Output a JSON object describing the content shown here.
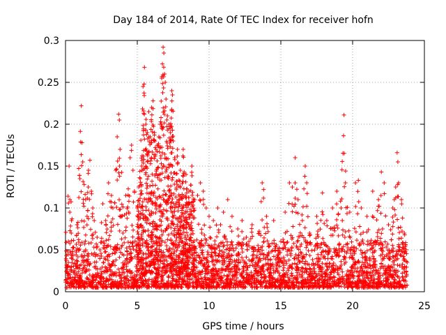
{
  "chart_data": {
    "type": "scatter",
    "title": "Day 184 of 2014, Rate Of TEC Index for receiver hofn",
    "xlabel": "GPS time / hours",
    "ylabel": "ROTI / TECUs",
    "xlim": [
      0,
      25
    ],
    "ylim": [
      0,
      0.3
    ],
    "xticks": [
      0,
      5,
      10,
      15,
      20,
      25
    ],
    "yticks": [
      0,
      0.05,
      0.1,
      0.15,
      0.2,
      0.25,
      0.3
    ],
    "xtick_labels": [
      "0",
      "5",
      "10",
      "15",
      "20",
      "25"
    ],
    "ytick_labels": [
      "0",
      "0.05",
      "0.1",
      "0.15",
      "0.2",
      "0.25",
      "0.3"
    ],
    "grid": true,
    "marker": "+",
    "marker_color": "#ff0000",
    "series": [
      {
        "name": "ROTI",
        "points": [
          [
            0.1,
            0.012
          ],
          [
            0.2,
            0.035
          ],
          [
            0.2,
            0.06
          ],
          [
            0.25,
            0.15
          ],
          [
            0.3,
            0.11
          ],
          [
            0.3,
            0.095
          ],
          [
            0.4,
            0.07
          ],
          [
            0.5,
            0.045
          ],
          [
            0.6,
            0.025
          ],
          [
            0.8,
            0.08
          ],
          [
            1.0,
            0.135
          ],
          [
            1.1,
            0.222
          ],
          [
            1.15,
            0.178
          ],
          [
            1.2,
            0.155
          ],
          [
            1.3,
            0.128
          ],
          [
            1.4,
            0.11
          ],
          [
            1.5,
            0.09
          ],
          [
            1.6,
            0.145
          ],
          [
            1.7,
            0.157
          ],
          [
            1.8,
            0.12
          ],
          [
            1.9,
            0.1
          ],
          [
            2.0,
            0.085
          ],
          [
            2.2,
            0.065
          ],
          [
            2.4,
            0.05
          ],
          [
            2.6,
            0.105
          ],
          [
            2.8,
            0.085
          ],
          [
            3.0,
            0.13
          ],
          [
            3.2,
            0.115
          ],
          [
            3.3,
            0.1
          ],
          [
            3.5,
            0.145
          ],
          [
            3.6,
            0.185
          ],
          [
            3.7,
            0.212
          ],
          [
            3.75,
            0.205
          ],
          [
            3.8,
            0.17
          ],
          [
            3.9,
            0.09
          ],
          [
            4.0,
            0.07
          ],
          [
            4.2,
            0.115
          ],
          [
            4.4,
            0.095
          ],
          [
            4.5,
            0.16
          ],
          [
            4.6,
            0.175
          ],
          [
            4.7,
            0.145
          ],
          [
            4.8,
            0.12
          ],
          [
            5.0,
            0.1
          ],
          [
            5.1,
            0.125
          ],
          [
            5.2,
            0.135
          ],
          [
            5.3,
            0.15
          ],
          [
            5.4,
            0.245
          ],
          [
            5.5,
            0.268
          ],
          [
            5.6,
            0.2
          ],
          [
            5.7,
            0.19
          ],
          [
            5.8,
            0.215
          ],
          [
            5.9,
            0.185
          ],
          [
            6.0,
            0.22
          ],
          [
            6.1,
            0.228
          ],
          [
            6.2,
            0.19
          ],
          [
            6.3,
            0.17
          ],
          [
            6.4,
            0.175
          ],
          [
            6.5,
            0.185
          ],
          [
            6.6,
            0.2
          ],
          [
            6.7,
            0.255
          ],
          [
            6.75,
            0.272
          ],
          [
            6.8,
            0.292
          ],
          [
            6.85,
            0.285
          ],
          [
            6.9,
            0.26
          ],
          [
            6.95,
            0.25
          ],
          [
            7.0,
            0.23
          ],
          [
            7.1,
            0.21
          ],
          [
            7.2,
            0.2
          ],
          [
            7.3,
            0.19
          ],
          [
            7.4,
            0.24
          ],
          [
            7.45,
            0.235
          ],
          [
            7.5,
            0.18
          ],
          [
            7.6,
            0.16
          ],
          [
            7.8,
            0.17
          ],
          [
            8.0,
            0.145
          ],
          [
            8.2,
            0.17
          ],
          [
            8.4,
            0.14
          ],
          [
            8.6,
            0.12
          ],
          [
            8.8,
            0.15
          ],
          [
            9.0,
            0.11
          ],
          [
            9.2,
            0.115
          ],
          [
            9.4,
            0.13
          ],
          [
            9.6,
            0.12
          ],
          [
            9.8,
            0.1
          ],
          [
            10.0,
            0.09
          ],
          [
            10.3,
            0.085
          ],
          [
            10.6,
            0.1
          ],
          [
            10.8,
            0.08
          ],
          [
            11.0,
            0.095
          ],
          [
            11.3,
            0.11
          ],
          [
            11.6,
            0.09
          ],
          [
            12.0,
            0.075
          ],
          [
            12.3,
            0.085
          ],
          [
            12.6,
            0.065
          ],
          [
            13.0,
            0.08
          ],
          [
            13.5,
            0.07
          ],
          [
            13.7,
            0.13
          ],
          [
            13.8,
            0.122
          ],
          [
            14.0,
            0.09
          ],
          [
            14.5,
            0.085
          ],
          [
            15.0,
            0.06
          ],
          [
            15.3,
            0.095
          ],
          [
            15.6,
            0.13
          ],
          [
            15.8,
            0.125
          ],
          [
            16.0,
            0.16
          ],
          [
            16.2,
            0.11
          ],
          [
            16.5,
            0.085
          ],
          [
            16.7,
            0.15
          ],
          [
            16.8,
            0.13
          ],
          [
            17.0,
            0.07
          ],
          [
            17.5,
            0.09
          ],
          [
            17.9,
            0.118
          ],
          [
            18.2,
            0.085
          ],
          [
            18.6,
            0.1
          ],
          [
            18.9,
            0.12
          ],
          [
            19.2,
            0.1
          ],
          [
            19.4,
            0.211
          ],
          [
            19.5,
            0.13
          ],
          [
            19.8,
            0.095
          ],
          [
            20.2,
            0.13
          ],
          [
            20.4,
            0.133
          ],
          [
            20.6,
            0.1
          ],
          [
            21.0,
            0.09
          ],
          [
            21.4,
            0.12
          ],
          [
            21.8,
            0.11
          ],
          [
            22.0,
            0.143
          ],
          [
            22.2,
            0.13
          ],
          [
            22.5,
            0.08
          ],
          [
            22.8,
            0.1
          ],
          [
            23.0,
            0.125
          ],
          [
            23.1,
            0.166
          ],
          [
            23.15,
            0.155
          ],
          [
            23.2,
            0.13
          ],
          [
            23.4,
            0.11
          ],
          [
            23.6,
            0.07
          ],
          [
            23.8,
            0.035
          ]
        ],
        "dense_band": {
          "description": "dense cluster of points between ROTI 0.005 and ~0.06 across all hours 0 to 23.8"
        }
      }
    ]
  }
}
